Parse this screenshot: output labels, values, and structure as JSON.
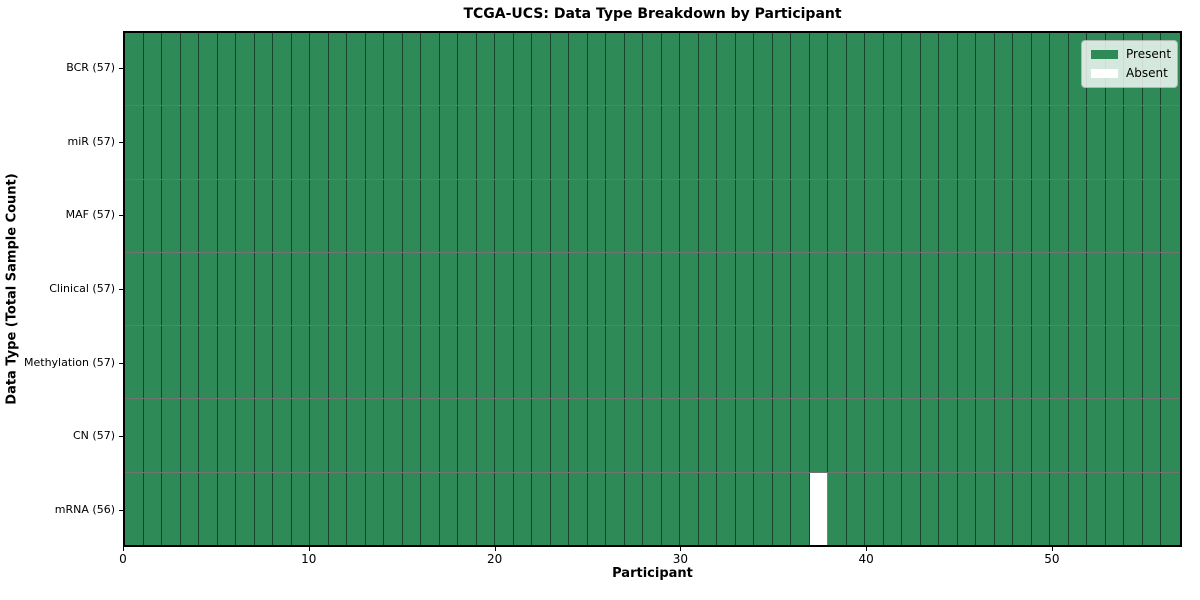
{
  "chart_data": {
    "type": "heatmap",
    "title": "TCGA-UCS: Data Type Breakdown by Participant",
    "xlabel": "Participant",
    "ylabel": "Data Type (Total Sample Count)",
    "n_participants": 57,
    "x_range": [
      0,
      57
    ],
    "x_ticks": [
      0,
      10,
      20,
      30,
      40,
      50
    ],
    "grid": true,
    "rows": [
      {
        "data_type": "BCR",
        "label": "BCR (57)",
        "total_samples": 57,
        "absent_participants": []
      },
      {
        "data_type": "miR",
        "label": "miR (57)",
        "total_samples": 57,
        "absent_participants": []
      },
      {
        "data_type": "MAF",
        "label": "MAF (57)",
        "total_samples": 57,
        "absent_participants": []
      },
      {
        "data_type": "Clinical",
        "label": "Clinical (57)",
        "total_samples": 57,
        "absent_participants": []
      },
      {
        "data_type": "Methylation",
        "label": "Methylation (57)",
        "total_samples": 57,
        "absent_participants": []
      },
      {
        "data_type": "CN",
        "label": "CN (57)",
        "total_samples": 57,
        "absent_participants": []
      },
      {
        "data_type": "mRNA",
        "label": "mRNA (56)",
        "total_samples": 56,
        "absent_participants": [
          37
        ]
      }
    ],
    "legend": {
      "position": "upper right",
      "entries": [
        {
          "label": "Present",
          "color": "#2e8b57"
        },
        {
          "label": "Absent",
          "color": "#ffffff"
        }
      ]
    },
    "colors": {
      "present": "#2e8b57",
      "absent": "#ffffff",
      "cell_edge": "rgba(0,0,0,0.5)",
      "axes_border": "#000000"
    }
  }
}
